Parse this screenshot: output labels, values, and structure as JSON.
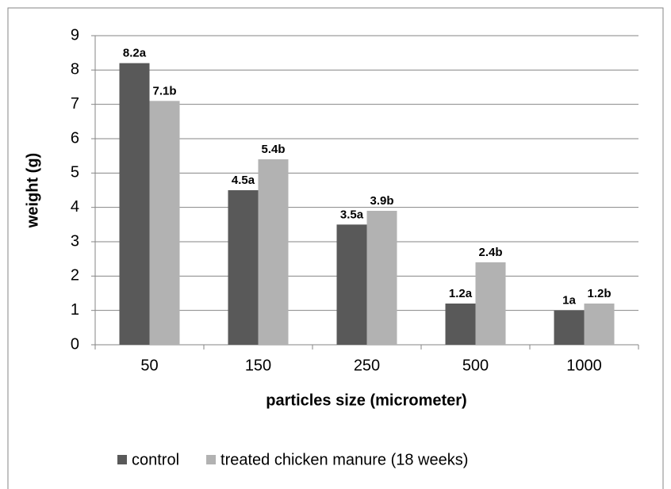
{
  "chart_data": {
    "type": "bar",
    "categories": [
      "50",
      "150",
      "250",
      "500",
      "1000"
    ],
    "series": [
      {
        "name": "control",
        "color": "#595959",
        "values": [
          8.2,
          4.5,
          3.5,
          1.2,
          1.0
        ],
        "value_labels": [
          "8.2a",
          "4.5a",
          "3.5a",
          "1.2a",
          "1a"
        ]
      },
      {
        "name": "treated chicken manure (18 weeks)",
        "color": "#b2b2b2",
        "values": [
          7.1,
          5.4,
          3.9,
          2.4,
          1.2
        ],
        "value_labels": [
          "7.1b",
          "5.4b",
          "3.9b",
          "2.4b",
          "1.2b"
        ]
      }
    ],
    "x_label": "particles size (micrometer)",
    "y_label": "weight (g)",
    "ylim": [
      0,
      9
    ],
    "yticks": [
      0,
      1,
      2,
      3,
      4,
      5,
      6,
      7,
      8,
      9
    ],
    "grid": true,
    "legend": "bottom"
  }
}
